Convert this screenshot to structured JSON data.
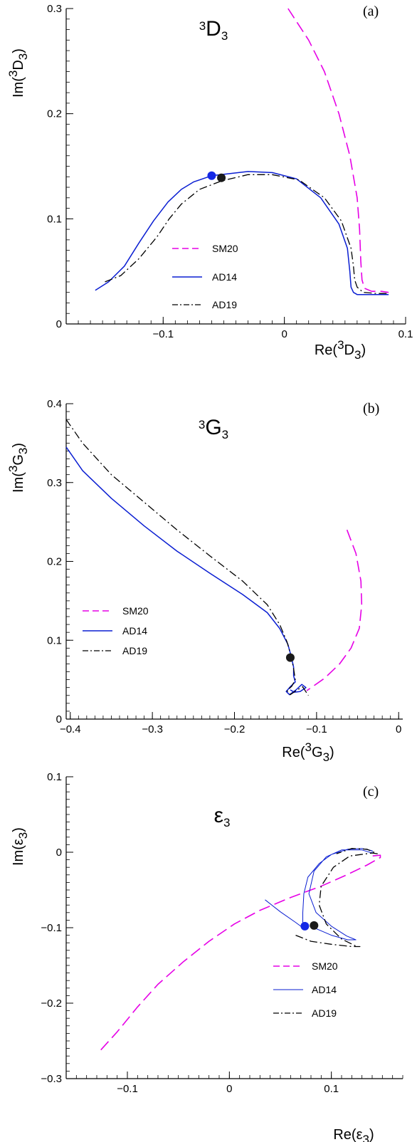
{
  "colors": {
    "SM20": "#e600e6",
    "AD14": "#0a1ed2",
    "AD19": "#000000",
    "blue_dot": "#1428e6",
    "black_dot": "#1a1a1a"
  },
  "chart_data": [
    {
      "type": "line",
      "panel_label": "(a)",
      "title": {
        "sup": "3",
        "main": "D",
        "sub": "3"
      },
      "xlabel": {
        "pre": "Re(",
        "sup": "3",
        "main": "D",
        "sub": "3",
        "post": ")"
      },
      "ylabel": {
        "pre": "Im(",
        "sup": "3",
        "main": "D",
        "sub": "3",
        "post": ")"
      },
      "xlim": [
        -0.18,
        0.1
      ],
      "ylim": [
        0,
        0.3
      ],
      "xticks": [
        {
          "v": -0.1,
          "label": "−0.1"
        },
        {
          "v": 0,
          "label": "0"
        },
        {
          "v": 0.1,
          "label": "0.1"
        }
      ],
      "yticks": [
        {
          "v": 0,
          "label": "0"
        },
        {
          "v": 0.1,
          "label": "0.1"
        },
        {
          "v": 0.2,
          "label": "0.2"
        },
        {
          "v": 0.3,
          "label": "0.3"
        }
      ],
      "legend": {
        "position": "bottom-left",
        "entries": [
          "SM20",
          "AD14",
          "AD19"
        ]
      },
      "series": [
        {
          "name": "SM20",
          "style": "dashed",
          "width": 1.6,
          "x": [
            0.003,
            0.02,
            0.033,
            0.045,
            0.054,
            0.06,
            0.062,
            0.063,
            0.064,
            0.066,
            0.072,
            0.08,
            0.086
          ],
          "y": [
            0.3,
            0.27,
            0.24,
            0.2,
            0.16,
            0.12,
            0.09,
            0.06,
            0.042,
            0.034,
            0.031,
            0.031,
            0.03
          ]
        },
        {
          "name": "AD14",
          "style": "solid",
          "width": 1.5,
          "x": [
            -0.156,
            -0.145,
            -0.132,
            -0.12,
            -0.108,
            -0.096,
            -0.085,
            -0.075,
            -0.06,
            -0.03,
            -0.01,
            0.01,
            0.03,
            0.045,
            0.052,
            0.054,
            0.055,
            0.057,
            0.06,
            0.07,
            0.086
          ],
          "y": [
            0.032,
            0.04,
            0.055,
            0.077,
            0.098,
            0.116,
            0.128,
            0.135,
            0.141,
            0.145,
            0.144,
            0.138,
            0.12,
            0.095,
            0.072,
            0.05,
            0.035,
            0.03,
            0.028,
            0.028,
            0.028
          ]
        },
        {
          "name": "AD19",
          "style": "dashdot",
          "width": 1.3,
          "x": [
            -0.148,
            -0.135,
            -0.12,
            -0.105,
            -0.095,
            -0.085,
            -0.07,
            -0.052,
            -0.03,
            -0.01,
            0.012,
            0.033,
            0.047,
            0.055,
            0.057,
            0.058,
            0.06,
            0.065,
            0.076,
            0.086
          ],
          "y": [
            0.04,
            0.046,
            0.062,
            0.083,
            0.1,
            0.114,
            0.128,
            0.136,
            0.142,
            0.142,
            0.137,
            0.12,
            0.098,
            0.072,
            0.055,
            0.042,
            0.035,
            0.03,
            0.029,
            0.029
          ]
        }
      ],
      "points": [
        {
          "series": "AD14",
          "x": -0.06,
          "y": 0.141,
          "color_key": "blue_dot"
        },
        {
          "series": "AD19",
          "x": -0.052,
          "y": 0.139,
          "color_key": "black_dot"
        }
      ]
    },
    {
      "type": "line",
      "panel_label": "(b)",
      "title": {
        "sup": "3",
        "main": "G",
        "sub": "3"
      },
      "xlabel": {
        "pre": "Re(",
        "sup": "3",
        "main": "G",
        "sub": "3",
        "post": ")"
      },
      "ylabel": {
        "pre": "Im(",
        "sup": "3",
        "main": "G",
        "sub": "3",
        "post": ")"
      },
      "xlim": [
        -0.405,
        0.005
      ],
      "ylim": [
        0,
        0.4
      ],
      "xticks": [
        {
          "v": -0.4,
          "label": "−0.4"
        },
        {
          "v": -0.3,
          "label": "−0.3"
        },
        {
          "v": -0.2,
          "label": "−0.2"
        },
        {
          "v": -0.1,
          "label": "−0.1"
        },
        {
          "v": 0,
          "label": "0"
        }
      ],
      "yticks": [
        {
          "v": 0,
          "label": "0"
        },
        {
          "v": 0.1,
          "label": "0.1"
        },
        {
          "v": 0.2,
          "label": "0.2"
        },
        {
          "v": 0.3,
          "label": "0.3"
        },
        {
          "v": 0.4,
          "label": "0.4"
        }
      ],
      "legend": {
        "position": "bottom-left",
        "entries": [
          "SM20",
          "AD14",
          "AD19"
        ]
      },
      "series": [
        {
          "name": "SM20",
          "style": "dashed",
          "width": 1.6,
          "x": [
            -0.063,
            -0.052,
            -0.046,
            -0.045,
            -0.048,
            -0.058,
            -0.072,
            -0.09,
            -0.105,
            -0.112
          ],
          "y": [
            0.24,
            0.21,
            0.175,
            0.145,
            0.115,
            0.09,
            0.07,
            0.052,
            0.041,
            0.036
          ]
        },
        {
          "name": "AD14",
          "style": "solid",
          "width": 1.5,
          "x": [
            -0.405,
            -0.385,
            -0.35,
            -0.31,
            -0.27,
            -0.23,
            -0.19,
            -0.16,
            -0.145,
            -0.135,
            -0.131,
            -0.128,
            -0.128,
            -0.126,
            -0.132,
            -0.137,
            -0.133,
            -0.125,
            -0.118,
            -0.113,
            -0.12,
            -0.127,
            -0.132
          ],
          "y": [
            0.345,
            0.315,
            0.28,
            0.245,
            0.213,
            0.185,
            0.158,
            0.135,
            0.115,
            0.095,
            0.08,
            0.066,
            0.055,
            0.047,
            0.041,
            0.035,
            0.031,
            0.037,
            0.044,
            0.04,
            0.035,
            0.034,
            0.037
          ]
        },
        {
          "name": "AD19",
          "style": "dashdot",
          "width": 1.3,
          "x": [
            -0.405,
            -0.385,
            -0.35,
            -0.31,
            -0.27,
            -0.23,
            -0.19,
            -0.16,
            -0.145,
            -0.136,
            -0.131,
            -0.128,
            -0.126,
            -0.13,
            -0.136,
            -0.132,
            -0.125,
            -0.117,
            -0.11
          ],
          "y": [
            0.38,
            0.35,
            0.31,
            0.275,
            0.24,
            0.207,
            0.175,
            0.145,
            0.12,
            0.098,
            0.08,
            0.064,
            0.05,
            0.042,
            0.036,
            0.031,
            0.036,
            0.041,
            0.03
          ]
        }
      ],
      "points": [
        {
          "series": "AD19",
          "x": -0.132,
          "y": 0.078,
          "color_key": "black_dot"
        }
      ]
    },
    {
      "type": "line",
      "panel_label": "(c)",
      "title": {
        "main": "ε",
        "sub": "3"
      },
      "xlabel": {
        "pre": "Re(",
        "main": "ε",
        "sub": "3",
        "post": ")"
      },
      "ylabel": {
        "pre": "Im(",
        "main": "ε",
        "sub": "3",
        "post": ")"
      },
      "xlim": [
        -0.16,
        0.17
      ],
      "ylim": [
        -0.3,
        0.1
      ],
      "xticks": [
        {
          "v": -0.1,
          "label": "−0.1"
        },
        {
          "v": 0,
          "label": "0"
        },
        {
          "v": 0.1,
          "label": "0.1"
        }
      ],
      "yticks": [
        {
          "v": -0.3,
          "label": "−0.3"
        },
        {
          "v": -0.2,
          "label": "−0.2"
        },
        {
          "v": -0.1,
          "label": "−0.1"
        },
        {
          "v": 0,
          "label": "0"
        },
        {
          "v": 0.1,
          "label": "0.1"
        }
      ],
      "legend": {
        "position": "bottom-right",
        "entries": [
          "SM20",
          "AD14",
          "AD19"
        ]
      },
      "series": [
        {
          "name": "SM20",
          "style": "dashed",
          "width": 1.6,
          "x": [
            -0.126,
            -0.11,
            -0.09,
            -0.07,
            -0.045,
            -0.02,
            0.005,
            0.03,
            0.06,
            0.09,
            0.115,
            0.135,
            0.148,
            0.148,
            0.14
          ],
          "y": [
            -0.262,
            -0.238,
            -0.205,
            -0.175,
            -0.145,
            -0.118,
            -0.095,
            -0.077,
            -0.06,
            -0.045,
            -0.03,
            -0.017,
            -0.007,
            -0.004,
            -0.005
          ]
        },
        {
          "name": "AD14",
          "style": "solid",
          "width": 1.0,
          "x": [
            0.035,
            0.05,
            0.065,
            0.072,
            0.072,
            0.073,
            0.077,
            0.088,
            0.1,
            0.116,
            0.13,
            0.14,
            0.14,
            0.13,
            0.11,
            0.095,
            0.083,
            0.078,
            0.085,
            0.1,
            0.115,
            0.124,
            0.116,
            0.1,
            0.088,
            0.081
          ],
          "y": [
            -0.063,
            -0.079,
            -0.093,
            -0.1,
            -0.08,
            -0.055,
            -0.033,
            -0.015,
            -0.003,
            0.004,
            0.005,
            0.002,
            -0.001,
            0.003,
            0.003,
            -0.006,
            -0.025,
            -0.055,
            -0.08,
            -0.098,
            -0.111,
            -0.116,
            -0.116,
            -0.11,
            -0.103,
            -0.099
          ]
        },
        {
          "name": "AD19",
          "style": "dashdot",
          "width": 1.3,
          "x": [
            0.065,
            0.08,
            0.1,
            0.12,
            0.128,
            0.125,
            0.11,
            0.095,
            0.088,
            0.09,
            0.102,
            0.118,
            0.14,
            0.145,
            0.135,
            0.12,
            0.105
          ],
          "y": [
            -0.11,
            -0.118,
            -0.122,
            -0.125,
            -0.125,
            -0.125,
            -0.115,
            -0.095,
            -0.07,
            -0.045,
            -0.02,
            -0.005,
            -0.001,
            -0.002,
            0.004,
            0.005,
            -0.002
          ]
        }
      ],
      "points": [
        {
          "series": "AD14",
          "x": 0.074,
          "y": -0.098,
          "color_key": "blue_dot"
        },
        {
          "series": "AD19",
          "x": 0.083,
          "y": -0.097,
          "color_key": "black_dot"
        }
      ]
    }
  ]
}
